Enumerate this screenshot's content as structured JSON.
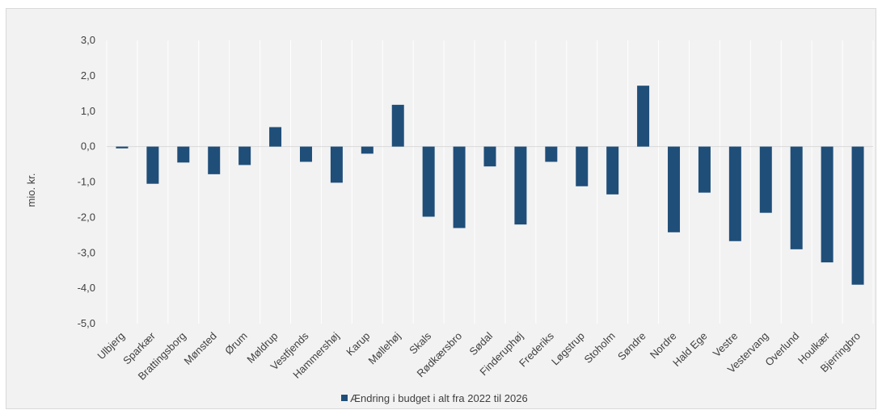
{
  "chart_data": {
    "type": "bar",
    "categories": [
      "Ulbjerg",
      "Sparkær",
      "Brattingsborg",
      "Mønsted",
      "Ørum",
      "Møldrup",
      "Vestfjends",
      "Hammershøj",
      "Karup",
      "Møllehøj",
      "Skals",
      "Rødkærsbro",
      "Sødal",
      "Finderuphøj",
      "Frederiks",
      "Løgstrup",
      "Stoholm",
      "Søndre",
      "Nordre",
      "Hald Ege",
      "Vestre",
      "Vestervang",
      "Overlund",
      "Houlkær",
      "Bjerringbro"
    ],
    "series": [
      {
        "name": "Ændring i budget i alt fra 2022 til 2026",
        "values": [
          -0.05,
          -1.05,
          -0.45,
          -0.78,
          -0.52,
          0.55,
          -0.43,
          -1.02,
          -0.2,
          1.18,
          -1.98,
          -2.3,
          -0.56,
          -2.2,
          -0.43,
          -1.12,
          -1.35,
          1.72,
          -2.42,
          -1.3,
          -2.67,
          -1.87,
          -2.9,
          -3.27,
          -3.9
        ]
      }
    ],
    "ylabel": "mio. kr.",
    "ylim": [
      -5,
      3
    ],
    "yticks": [
      3,
      2,
      1,
      0,
      -1,
      -2,
      -3,
      -4,
      -5
    ],
    "ytick_labels": [
      "3,0",
      "2,0",
      "1,0",
      "0,0",
      "-1,0",
      "-2,0",
      "-3,0",
      "-4,0",
      "-5,0"
    ],
    "grid": "vertical",
    "legend_position": "bottom",
    "colors": {
      "bar": "#1f4e79",
      "background": "#f2f2f2",
      "grid": "#ffffff",
      "zero_line": "#d9d9d9",
      "text": "#404040"
    }
  }
}
